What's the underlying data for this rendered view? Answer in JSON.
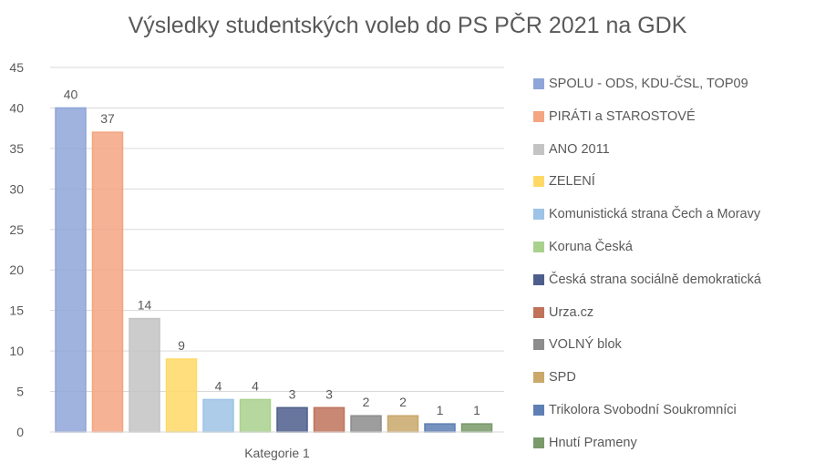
{
  "chart_data": {
    "type": "bar",
    "title": "Výsledky studentských voleb do PS PČR 2021 na GDK",
    "xlabel": "Kategorie 1",
    "ylabel": "",
    "ylim": [
      0,
      45
    ],
    "yticks": [
      0,
      5,
      10,
      15,
      20,
      25,
      30,
      35,
      40,
      45
    ],
    "grid": true,
    "legend_position": "right",
    "categories": [
      "Kategorie 1"
    ],
    "series": [
      {
        "name": "SPOLU - ODS, KDU-ČSL, TOP09",
        "values": [
          40
        ],
        "color": "#8fa4d8"
      },
      {
        "name": "PIRÁTI a STAROSTOVÉ",
        "values": [
          37
        ],
        "color": "#f4a582"
      },
      {
        "name": "ANO 2011",
        "values": [
          14
        ],
        "color": "#c3c3c3"
      },
      {
        "name": "ZELENÍ",
        "values": [
          9
        ],
        "color": "#ffd966"
      },
      {
        "name": "Komunistická strana Čech a Moravy",
        "values": [
          4
        ],
        "color": "#9dc3e6"
      },
      {
        "name": "Koruna Česká",
        "values": [
          4
        ],
        "color": "#a9d18e"
      },
      {
        "name": "Česká strana sociálně demokratická",
        "values": [
          3
        ],
        "color": "#4e5e8c"
      },
      {
        "name": "Urza.cz",
        "values": [
          3
        ],
        "color": "#c0735a"
      },
      {
        "name": "VOLNÝ blok",
        "values": [
          2
        ],
        "color": "#8c8c8c"
      },
      {
        "name": "SPD",
        "values": [
          2
        ],
        "color": "#c9a86a"
      },
      {
        "name": "Trikolora Svobodní Soukromníci",
        "values": [
          1
        ],
        "color": "#5e7fb4"
      },
      {
        "name": "Hnutí Prameny",
        "values": [
          1
        ],
        "color": "#7a9a6a"
      }
    ]
  }
}
